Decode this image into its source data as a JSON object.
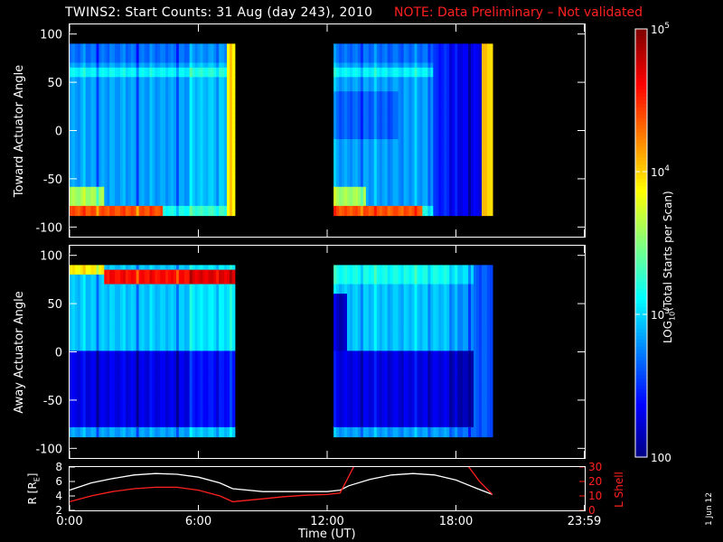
{
  "header": {
    "title": "TWINS2: Start Counts: 31 Aug (day 243), 2010",
    "note": "NOTE: Data Preliminary – Not validated"
  },
  "colors": {
    "background": "#000000",
    "note": "#ff2020",
    "r_line": "#ffffff",
    "lshell_line": "#ff2020"
  },
  "chart_data": [
    {
      "type": "heatmap",
      "panel": "top",
      "ylabel": "Toward Actuator Angle",
      "ylim": [
        -110,
        110
      ],
      "yticks": [
        100,
        50,
        0,
        -50,
        -100
      ],
      "xlim": [
        0,
        24
      ],
      "x_data_ranges_hours": [
        [
          0,
          7.7
        ],
        [
          12.3,
          19.7
        ]
      ],
      "y_data_range": [
        -88,
        90
      ],
      "value_scale": "log10",
      "value_range": [
        100,
        100000
      ],
      "description_values": {
        "background_level": 700,
        "band_near_minus_85": 30000,
        "band_near_60": 1200
      }
    },
    {
      "type": "heatmap",
      "panel": "middle",
      "ylabel": "Away Actuator Angle",
      "ylim": [
        -110,
        110
      ],
      "yticks": [
        100,
        50,
        0,
        -50,
        -100
      ],
      "xlim": [
        0,
        24
      ],
      "x_data_ranges_hours": [
        [
          0,
          7.7
        ],
        [
          12.3,
          19.7
        ]
      ],
      "y_data_range": [
        -88,
        90
      ],
      "value_scale": "log10",
      "value_range": [
        100,
        100000
      ],
      "description_values": {
        "band_near_80": 40000,
        "upper_half_level": 900,
        "lower_half_level": 200
      }
    },
    {
      "type": "line",
      "panel": "bottom",
      "ylabel": "R [RE]",
      "ylabel_main": "R [R",
      "ylabel_sub": "E",
      "ylabel_end": "]",
      "ylim": [
        2,
        8
      ],
      "yticks": [
        2,
        4,
        6,
        8
      ],
      "y2label": "L Shell",
      "y2lim": [
        0,
        30
      ],
      "y2ticks": [
        0,
        10,
        20,
        30
      ],
      "xlim": [
        0,
        24
      ],
      "xticks": [
        "0:00",
        "6:00",
        "12:00",
        "18:00",
        "23:59"
      ],
      "xtick_hours": [
        0,
        6,
        12,
        18,
        23.98
      ],
      "xlabel": "Time (UT)",
      "series": [
        {
          "name": "R",
          "x": [
            0,
            1,
            2,
            3,
            4,
            5,
            6,
            7,
            7.6,
            9,
            10,
            11,
            12,
            12.6,
            13,
            14,
            15,
            16,
            17,
            18,
            19,
            19.7
          ],
          "y": [
            4.8,
            5.8,
            6.4,
            6.9,
            7.1,
            7.0,
            6.6,
            5.8,
            5.0,
            4.6,
            4.6,
            4.6,
            4.6,
            4.8,
            5.4,
            6.3,
            6.9,
            7.1,
            6.9,
            6.2,
            5.0,
            4.2
          ]
        },
        {
          "name": "L Shell",
          "axis": "right",
          "x": [
            0,
            1,
            2,
            3,
            4,
            5,
            6,
            7,
            7.6,
            9,
            10,
            11,
            12,
            12.6,
            13.3,
            18.5,
            19.1,
            19.7
          ],
          "y": [
            6,
            10,
            13,
            15,
            16,
            16,
            14,
            10,
            6,
            8,
            9.5,
            10.5,
            11,
            12,
            32,
            32,
            20,
            11
          ]
        }
      ]
    }
  ],
  "colorbar": {
    "label_prefix": "LOG",
    "label_sub": "10",
    "label_suffix": "(Total Starts per Scan)",
    "ticks": [
      {
        "base": "10",
        "exp": "5",
        "value": 100000
      },
      {
        "base": "10",
        "exp": "4",
        "value": 10000
      },
      {
        "base": "10",
        "exp": "3",
        "value": 1000
      },
      {
        "base": "100",
        "exp": "",
        "value": 100
      }
    ]
  },
  "footer": {
    "date_stamp": "1 Jun 12"
  }
}
